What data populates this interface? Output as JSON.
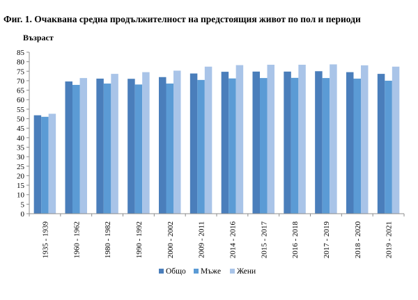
{
  "figure": {
    "title": "Фиг. 1. Очаквана средна продължителност на предстоящия живот по пол и периоди"
  },
  "chart_data": {
    "type": "bar",
    "title": "",
    "xlabel": "",
    "ylabel": "Възраст",
    "ylim": [
      0,
      85
    ],
    "ytick_step": 5,
    "grid": false,
    "legend_position": "bottom",
    "categories": [
      "1935 - 1939",
      "1960 - 1962",
      "1980 - 1982",
      "1990 - 1992",
      "2000 - 2002",
      "2009 - 2011",
      "2014 - 2016",
      "2015 - 2017",
      "2016 - 2018",
      "2017 - 2019",
      "2018 - 2020",
      "2019 - 2021"
    ],
    "series": [
      {
        "name": "Общо",
        "color": "#4a7ebb",
        "values": [
          51.8,
          69.6,
          71.1,
          71.0,
          71.9,
          73.8,
          74.7,
          74.8,
          74.8,
          75.0,
          74.5,
          73.6
        ]
      },
      {
        "name": "Мъже",
        "color": "#5b9bd5",
        "values": [
          51.0,
          67.8,
          68.5,
          68.0,
          68.5,
          70.4,
          71.2,
          71.4,
          71.5,
          71.4,
          71.1,
          70.0
        ]
      },
      {
        "name": "Жени",
        "color": "#a9c4e8",
        "values": [
          52.6,
          71.4,
          73.6,
          74.5,
          75.3,
          77.4,
          78.2,
          78.4,
          78.4,
          78.6,
          78.1,
          77.4
        ]
      }
    ]
  }
}
